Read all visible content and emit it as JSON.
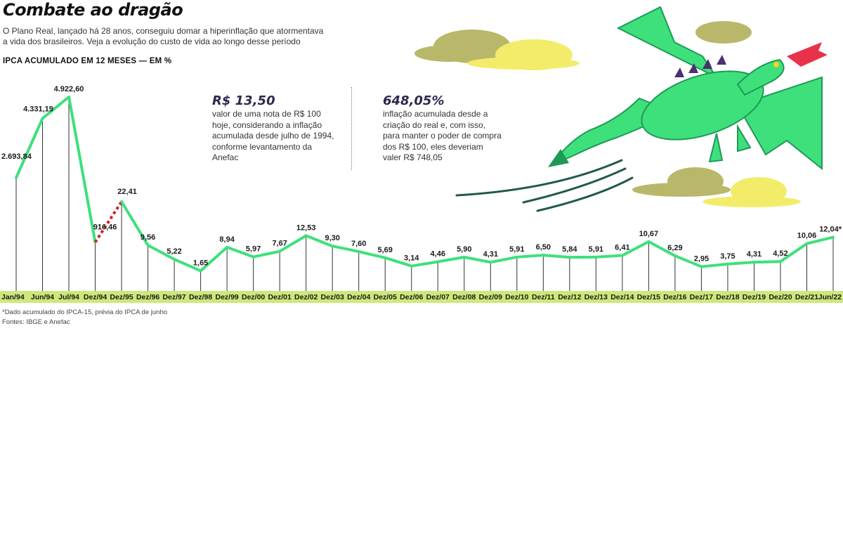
{
  "header": {
    "title": "Combate ao dragão",
    "subtitle": "O Plano Real, lançado há 28 anos, conseguiu domar a hiperinflação que atormentava a vida dos brasileiros. Veja a evolução do custo de vida ao longo desse período",
    "unit_label": "IPCA ACUMULADO EM 12 MESES — EM %"
  },
  "callouts": [
    {
      "value": "R$ 13,50",
      "text": "valor de uma nota de R$ 100 hoje, considerando a inflação acumulada desde julho de 1994, conforme levantamento da Anefac"
    },
    {
      "value": "648,05%",
      "text": "inflação acumulada desde a criação do real e, com isso, para manter o poder de compra dos R$ 100, eles deveriam valer R$ 748,05"
    }
  ],
  "footnote": {
    "note": "*Dado acumulado do IPCA-15, prévia do IPCA de junho",
    "sources": "Fontes: IBGE e Anefac"
  },
  "colors": {
    "line": "#3ee07c",
    "line_dashed": "#d42020",
    "axis_band": "#cde87a",
    "drop_lines": "#333333"
  },
  "chart_data": {
    "type": "line",
    "title": "IPCA ACUMULADO EM 12 MESES — EM %",
    "categories": [
      "Jan/94",
      "Jun/94",
      "Jul/94",
      "Dez/94",
      "Dez/95",
      "Dez/96",
      "Dez/97",
      "Dez/98",
      "Dez/99",
      "Dez/00",
      "Dez/01",
      "Dez/02",
      "Dez/03",
      "Dez/04",
      "Dez/05",
      "Dez/06",
      "Dez/07",
      "Dez/08",
      "Dez/09",
      "Dez/10",
      "Dez/11",
      "Dez/12",
      "Dez/13",
      "Dez/14",
      "Dez/15",
      "Dez/16",
      "Dez/17",
      "Dez/18",
      "Dez/19",
      "Dez/20",
      "Dez/21",
      "Jun/22"
    ],
    "values": [
      2693.84,
      4331.19,
      4922.6,
      916.46,
      22.41,
      9.56,
      5.22,
      1.65,
      8.94,
      5.97,
      7.67,
      12.53,
      9.3,
      7.6,
      5.69,
      3.14,
      4.46,
      5.9,
      4.31,
      5.91,
      6.5,
      5.84,
      5.91,
      6.41,
      10.67,
      6.29,
      2.95,
      3.75,
      4.31,
      4.52,
      10.06,
      12.04
    ],
    "labels": [
      "2.693,84",
      "4.331,19",
      "4.922,60",
      "916,46",
      "22,41",
      "9,56",
      "5,22",
      "1,65",
      "8,94",
      "5,97",
      "7,67",
      "12,53",
      "9,30",
      "7,60",
      "5,69",
      "3,14",
      "4,46",
      "5,90",
      "4,31",
      "5,91",
      "6,50",
      "5,84",
      "5,91",
      "6,41",
      "10,67",
      "6,29",
      "2,95",
      "3,75",
      "4,31",
      "4,52",
      "10,06",
      "12,04*"
    ],
    "dashed_segment": [
      "Dez/94",
      "Dez/95"
    ],
    "scale": "broken (hyperinflation segment compressed)",
    "grid": false,
    "legend": "none"
  }
}
